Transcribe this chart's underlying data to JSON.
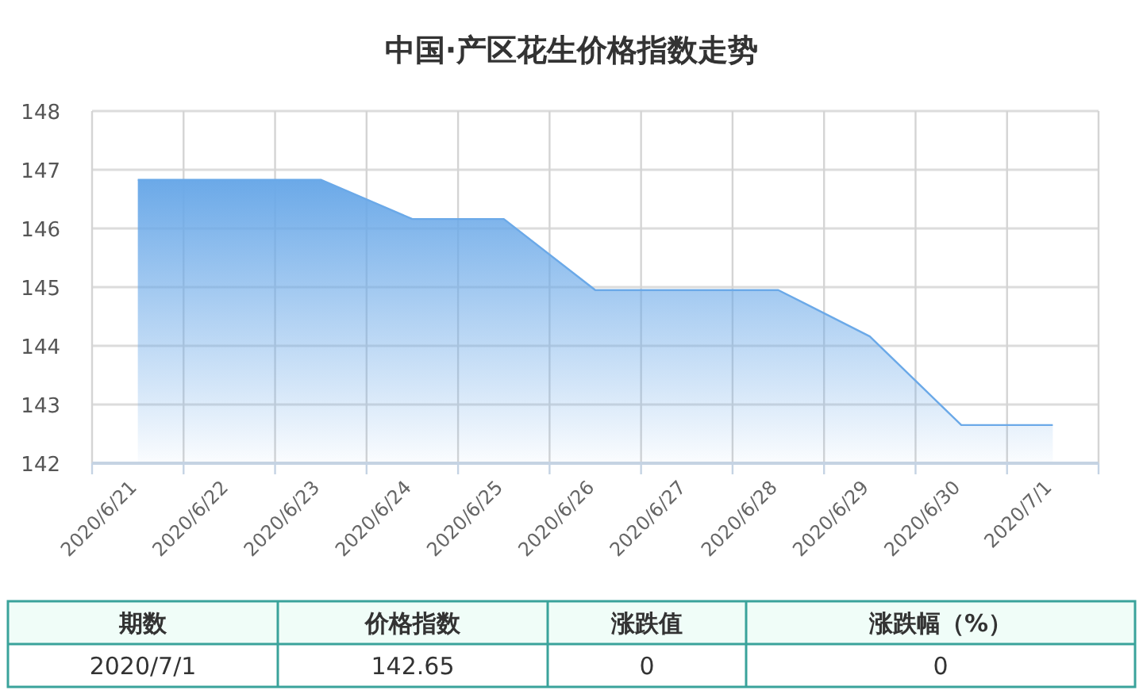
{
  "chart_data": {
    "type": "area",
    "title": "中国·产区花生价格指数走势",
    "categories": [
      "2020/6/21",
      "2020/6/22",
      "2020/6/23",
      "2020/6/24",
      "2020/6/25",
      "2020/6/26",
      "2020/6/27",
      "2020/6/28",
      "2020/6/29",
      "2020/6/30",
      "2020/7/1"
    ],
    "values": [
      146.83,
      146.83,
      146.83,
      146.16,
      146.16,
      144.95,
      144.95,
      144.95,
      144.16,
      142.65,
      142.65
    ],
    "color": "#6ba9e8",
    "ylim": [
      142,
      148
    ],
    "yticks": [
      142,
      143,
      144,
      145,
      146,
      147,
      148
    ],
    "grid": true,
    "annotations": [
      "期数",
      "价格指数",
      "涨跌值",
      "涨跌幅（%）",
      "2020/7/1",
      "142.65",
      "0",
      "0"
    ]
  }
}
